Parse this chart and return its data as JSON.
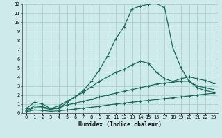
{
  "background_color": "#ceeaea",
  "grid_color": "#aacfcf",
  "line_color": "#1a6b5a",
  "xlabel": "Humidex (Indice chaleur)",
  "xlim": [
    -0.5,
    23.5
  ],
  "ylim": [
    0,
    12
  ],
  "xticks": [
    0,
    1,
    2,
    3,
    4,
    5,
    6,
    7,
    8,
    9,
    10,
    11,
    12,
    13,
    14,
    15,
    16,
    17,
    18,
    19,
    20,
    21,
    22,
    23
  ],
  "yticks": [
    0,
    1,
    2,
    3,
    4,
    5,
    6,
    7,
    8,
    9,
    10,
    11,
    12
  ],
  "curve4_x": [
    0,
    1,
    2,
    3,
    4,
    5,
    6,
    7,
    8,
    9,
    10,
    11,
    12,
    13,
    14,
    15,
    16,
    17,
    18,
    19,
    20,
    21,
    22,
    23
  ],
  "curve4_y": [
    0.5,
    1.2,
    1.0,
    0.5,
    0.5,
    1.2,
    1.8,
    2.5,
    3.5,
    4.8,
    6.3,
    8.2,
    9.5,
    11.5,
    11.8,
    12.0,
    12.1,
    11.6,
    7.2,
    5.0,
    3.5,
    2.8,
    2.5,
    2.3
  ],
  "curve3_x": [
    0,
    1,
    2,
    3,
    4,
    5,
    6,
    7,
    8,
    9,
    10,
    11,
    12,
    13,
    14,
    15,
    16,
    17,
    18,
    19,
    20,
    21,
    22,
    23
  ],
  "curve3_y": [
    0.3,
    0.8,
    0.7,
    0.5,
    0.8,
    1.3,
    1.8,
    2.3,
    2.9,
    3.5,
    4.0,
    4.5,
    4.8,
    5.3,
    5.7,
    5.5,
    4.5,
    3.8,
    3.5,
    3.8,
    4.0,
    3.8,
    3.6,
    3.3
  ],
  "curve2_x": [
    0,
    1,
    2,
    3,
    4,
    5,
    6,
    7,
    8,
    9,
    10,
    11,
    12,
    13,
    14,
    15,
    16,
    17,
    18,
    19,
    20,
    21,
    22,
    23
  ],
  "curve2_y": [
    0.25,
    0.6,
    0.6,
    0.4,
    0.6,
    0.9,
    1.1,
    1.3,
    1.5,
    1.8,
    2.0,
    2.2,
    2.4,
    2.6,
    2.8,
    3.0,
    3.2,
    3.3,
    3.4,
    3.5,
    3.5,
    3.0,
    2.8,
    2.6
  ],
  "curve1_x": [
    0,
    1,
    2,
    3,
    4,
    5,
    6,
    7,
    8,
    9,
    10,
    11,
    12,
    13,
    14,
    15,
    16,
    17,
    18,
    19,
    20,
    21,
    22,
    23
  ],
  "curve1_y": [
    0.15,
    0.35,
    0.3,
    0.2,
    0.25,
    0.35,
    0.45,
    0.55,
    0.65,
    0.75,
    0.9,
    1.0,
    1.1,
    1.2,
    1.3,
    1.4,
    1.5,
    1.6,
    1.7,
    1.8,
    1.9,
    2.0,
    2.1,
    2.2
  ]
}
